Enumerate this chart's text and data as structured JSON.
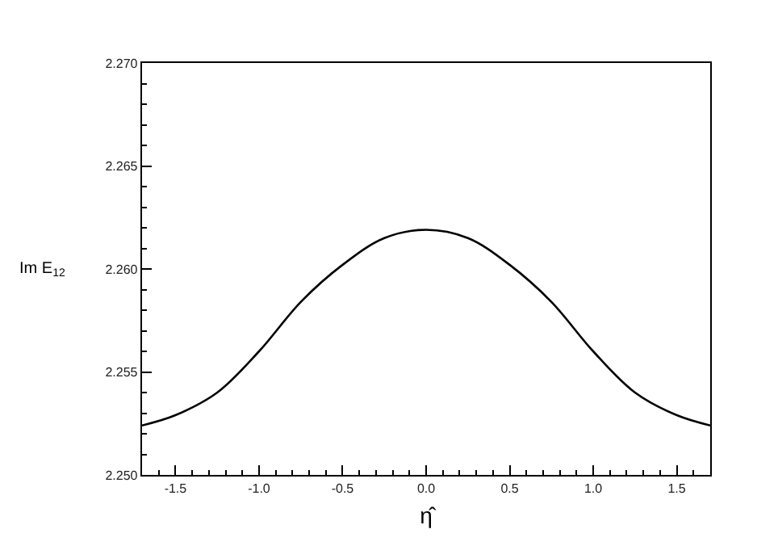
{
  "chart_data": {
    "type": "line",
    "xlabel": "η̂",
    "ylabel": "Im E$_{12}$",
    "x": [
      -1.7,
      -1.5,
      -1.25,
      -1.0,
      -0.75,
      -0.5,
      -0.25,
      0.0,
      0.25,
      0.5,
      0.75,
      1.0,
      1.25,
      1.5,
      1.7
    ],
    "series": [
      {
        "color": "#000000",
        "values": [
          2.2524,
          2.2529,
          2.254,
          2.256,
          2.2584,
          2.2602,
          2.2615,
          2.2619,
          2.2615,
          2.2602,
          2.2584,
          2.256,
          2.254,
          2.2529,
          2.2524
        ]
      }
    ],
    "xlim": [
      -1.7,
      1.7
    ],
    "xticks": [
      {
        "value": -1.7,
        "label": null
      },
      {
        "value": -1.6,
        "label": null
      },
      {
        "value": -1.5,
        "label": "-1.5"
      },
      {
        "value": -1.4,
        "label": null
      },
      {
        "value": -1.3,
        "label": null
      },
      {
        "value": -1.2,
        "label": null
      },
      {
        "value": -1.1,
        "label": null
      },
      {
        "value": -1.0,
        "label": "-1.0"
      },
      {
        "value": -0.9,
        "label": null
      },
      {
        "value": -0.8,
        "label": null
      },
      {
        "value": -0.7,
        "label": null
      },
      {
        "value": -0.6,
        "label": null
      },
      {
        "value": -0.5,
        "label": "-0.5"
      },
      {
        "value": -0.4,
        "label": null
      },
      {
        "value": -0.3,
        "label": null
      },
      {
        "value": -0.2,
        "label": null
      },
      {
        "value": -0.1,
        "label": null
      },
      {
        "value": 0.0,
        "label": "0.0"
      },
      {
        "value": 0.1,
        "label": null
      },
      {
        "value": 0.2,
        "label": null
      },
      {
        "value": 0.3,
        "label": null
      },
      {
        "value": 0.4,
        "label": null
      },
      {
        "value": 0.5,
        "label": "0.5"
      },
      {
        "value": 0.6,
        "label": null
      },
      {
        "value": 0.7,
        "label": null
      },
      {
        "value": 0.8,
        "label": null
      },
      {
        "value": 0.9,
        "label": null
      },
      {
        "value": 1.0,
        "label": "1.0"
      },
      {
        "value": 1.1,
        "label": null
      },
      {
        "value": 1.2,
        "label": null
      },
      {
        "value": 1.3,
        "label": null
      },
      {
        "value": 1.4,
        "label": null
      },
      {
        "value": 1.5,
        "label": "1.5"
      },
      {
        "value": 1.6,
        "label": null
      },
      {
        "value": 1.7,
        "label": null
      }
    ],
    "ylim": [
      2.25,
      2.27
    ],
    "yticks": [
      {
        "value": 2.25,
        "label": "2.250"
      },
      {
        "value": 2.251,
        "label": null
      },
      {
        "value": 2.252,
        "label": null
      },
      {
        "value": 2.253,
        "label": null
      },
      {
        "value": 2.254,
        "label": null
      },
      {
        "value": 2.255,
        "label": "2.255"
      },
      {
        "value": 2.256,
        "label": null
      },
      {
        "value": 2.257,
        "label": null
      },
      {
        "value": 2.258,
        "label": null
      },
      {
        "value": 2.259,
        "label": null
      },
      {
        "value": 2.26,
        "label": "2.260"
      },
      {
        "value": 2.261,
        "label": null
      },
      {
        "value": 2.262,
        "label": null
      },
      {
        "value": 2.263,
        "label": null
      },
      {
        "value": 2.264,
        "label": null
      },
      {
        "value": 2.265,
        "label": "2.265"
      },
      {
        "value": 2.266,
        "label": null
      },
      {
        "value": 2.267,
        "label": null
      },
      {
        "value": 2.268,
        "label": null
      },
      {
        "value": 2.269,
        "label": null
      },
      {
        "value": 2.27,
        "label": "2.270"
      }
    ],
    "marker": "none",
    "line_style": "solid"
  }
}
